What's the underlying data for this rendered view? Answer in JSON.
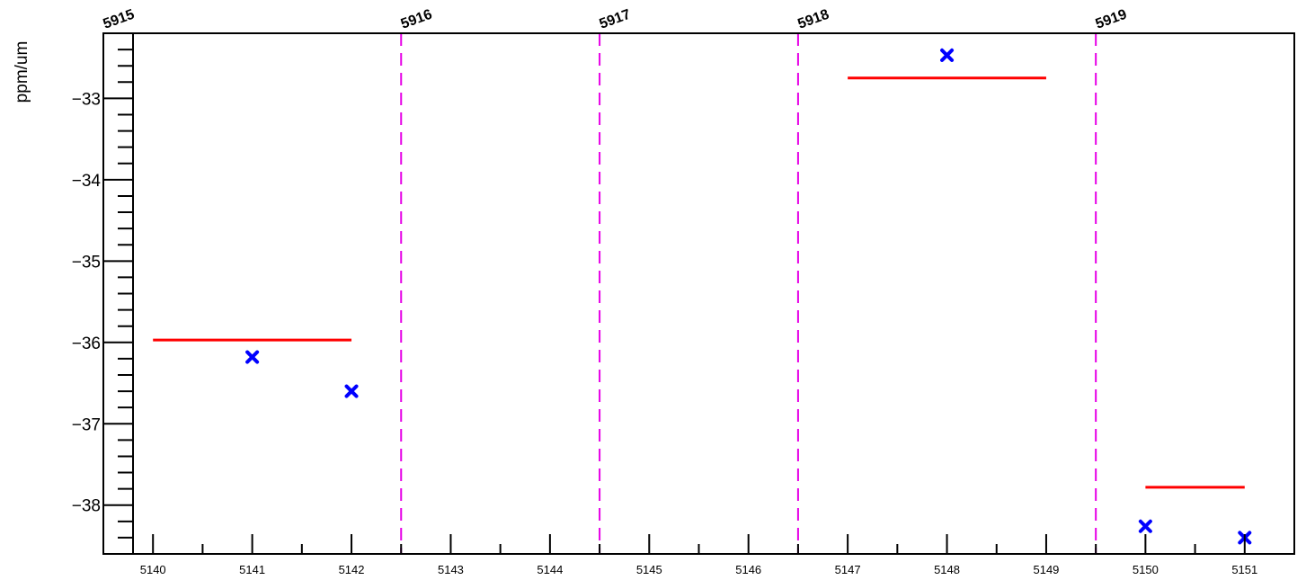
{
  "chart_data": {
    "type": "scatter",
    "title": "",
    "xlabel": "",
    "ylabel": "ppm/um",
    "xlim": [
      5139.5,
      5151.5
    ],
    "ylim": [
      -38.6,
      -32.2
    ],
    "x_ticks": [
      5140,
      5141,
      5142,
      5143,
      5144,
      5145,
      5146,
      5147,
      5148,
      5149,
      5150,
      5151
    ],
    "y_ticks": [
      -38,
      -37,
      -36,
      -35,
      -34,
      -33
    ],
    "grid": false,
    "colors": {
      "points": "#0000ff",
      "averages": "#ff0000",
      "run_boundaries": "#e600e6",
      "axis": "#000000"
    },
    "series": [
      {
        "points": [
          {
            "x": 5141,
            "y": -36.18
          },
          {
            "x": 5142,
            "y": -36.6
          },
          {
            "x": 5148,
            "y": -32.47
          },
          {
            "x": 5150,
            "y": -38.26
          },
          {
            "x": 5151,
            "y": -38.4
          }
        ]
      }
    ],
    "averages": [
      {
        "x_start": 5140,
        "x_end": 5142,
        "y": -35.97
      },
      {
        "x_start": 5147,
        "x_end": 5149,
        "y": -32.75
      },
      {
        "x_start": 5150,
        "x_end": 5151,
        "y": -37.78
      }
    ],
    "run_boundaries": [
      {
        "x": 5139.5,
        "label": "5915"
      },
      {
        "x": 5142.5,
        "label": "5916"
      },
      {
        "x": 5144.5,
        "label": "5917"
      },
      {
        "x": 5146.5,
        "label": "5918"
      },
      {
        "x": 5149.5,
        "label": "5919"
      }
    ]
  }
}
